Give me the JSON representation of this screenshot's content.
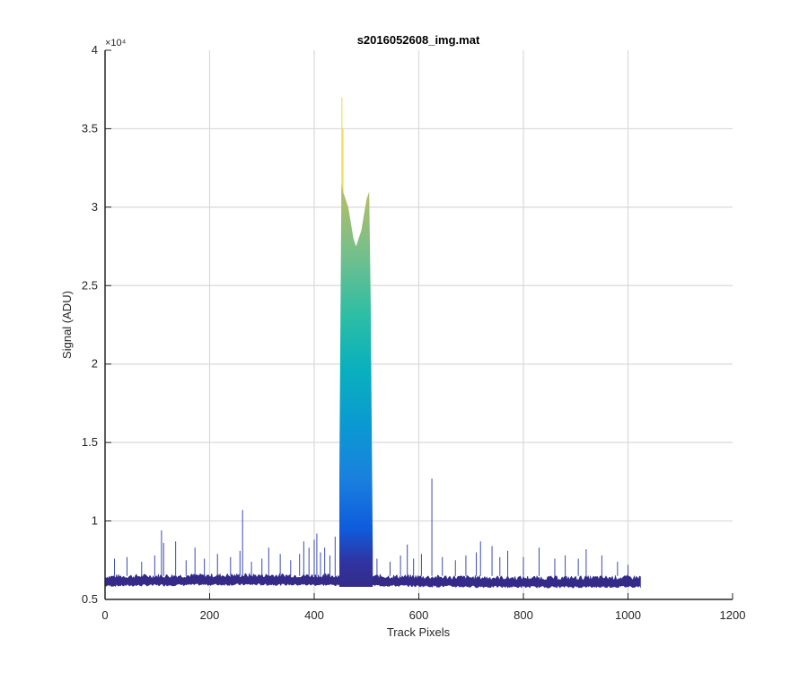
{
  "chart_data": {
    "type": "area",
    "title": "s2016052608_img.mat",
    "xlabel": "Track Pixels",
    "ylabel": "Signal (ADU)",
    "xlim": [
      0,
      1200
    ],
    "ylim": [
      5000,
      40000
    ],
    "x_ticks": [
      0,
      200,
      400,
      600,
      800,
      1000,
      1200
    ],
    "x_tick_labels": [
      "0",
      "200",
      "400",
      "600",
      "800",
      "1000",
      "1200"
    ],
    "y_ticks": [
      5000,
      10000,
      15000,
      20000,
      25000,
      30000,
      35000,
      40000
    ],
    "y_tick_labels": [
      "0.5",
      "1",
      "1.5",
      "2",
      "2.5",
      "3",
      "3.5",
      "4"
    ],
    "y_exponent_label": "×10⁴",
    "grid": true,
    "colormap": "parula",
    "baseline_range": [
      5800,
      6500
    ],
    "peak_region": {
      "x_start": 448,
      "x_end": 512,
      "profile_x": [
        448,
        452,
        455,
        460,
        465,
        470,
        475,
        480,
        485,
        490,
        495,
        500,
        505,
        508,
        512
      ],
      "profile_y": [
        13000,
        31500,
        31000,
        30500,
        30000,
        29000,
        28000,
        27500,
        28000,
        28500,
        29500,
        30500,
        31000,
        24000,
        8000
      ]
    },
    "spikes": [
      {
        "x": 18,
        "y": 7600
      },
      {
        "x": 42,
        "y": 7700
      },
      {
        "x": 70,
        "y": 7400
      },
      {
        "x": 95,
        "y": 7800
      },
      {
        "x": 108,
        "y": 9400
      },
      {
        "x": 112,
        "y": 8600
      },
      {
        "x": 135,
        "y": 8700
      },
      {
        "x": 155,
        "y": 7500
      },
      {
        "x": 172,
        "y": 8300
      },
      {
        "x": 190,
        "y": 7600
      },
      {
        "x": 215,
        "y": 7900
      },
      {
        "x": 240,
        "y": 7700
      },
      {
        "x": 258,
        "y": 8100
      },
      {
        "x": 263,
        "y": 10700
      },
      {
        "x": 280,
        "y": 7400
      },
      {
        "x": 300,
        "y": 7600
      },
      {
        "x": 313,
        "y": 8300
      },
      {
        "x": 335,
        "y": 7900
      },
      {
        "x": 355,
        "y": 7500
      },
      {
        "x": 372,
        "y": 7900
      },
      {
        "x": 380,
        "y": 8700
      },
      {
        "x": 390,
        "y": 8300
      },
      {
        "x": 400,
        "y": 8800
      },
      {
        "x": 405,
        "y": 9200
      },
      {
        "x": 412,
        "y": 8000
      },
      {
        "x": 420,
        "y": 8300
      },
      {
        "x": 430,
        "y": 7800
      },
      {
        "x": 440,
        "y": 9000
      },
      {
        "x": 453,
        "y": 37000
      },
      {
        "x": 455,
        "y": 35000
      },
      {
        "x": 520,
        "y": 7600
      },
      {
        "x": 545,
        "y": 7400
      },
      {
        "x": 565,
        "y": 7800
      },
      {
        "x": 578,
        "y": 8500
      },
      {
        "x": 590,
        "y": 7600
      },
      {
        "x": 605,
        "y": 7900
      },
      {
        "x": 625,
        "y": 12700
      },
      {
        "x": 645,
        "y": 7700
      },
      {
        "x": 670,
        "y": 7500
      },
      {
        "x": 690,
        "y": 7800
      },
      {
        "x": 710,
        "y": 8000
      },
      {
        "x": 718,
        "y": 8700
      },
      {
        "x": 740,
        "y": 8400
      },
      {
        "x": 755,
        "y": 7700
      },
      {
        "x": 770,
        "y": 8100
      },
      {
        "x": 800,
        "y": 7700
      },
      {
        "x": 830,
        "y": 8300
      },
      {
        "x": 860,
        "y": 7600
      },
      {
        "x": 880,
        "y": 7800
      },
      {
        "x": 905,
        "y": 7600
      },
      {
        "x": 920,
        "y": 8200
      },
      {
        "x": 950,
        "y": 7800
      },
      {
        "x": 980,
        "y": 7400
      },
      {
        "x": 1000,
        "y": 7200
      }
    ]
  }
}
